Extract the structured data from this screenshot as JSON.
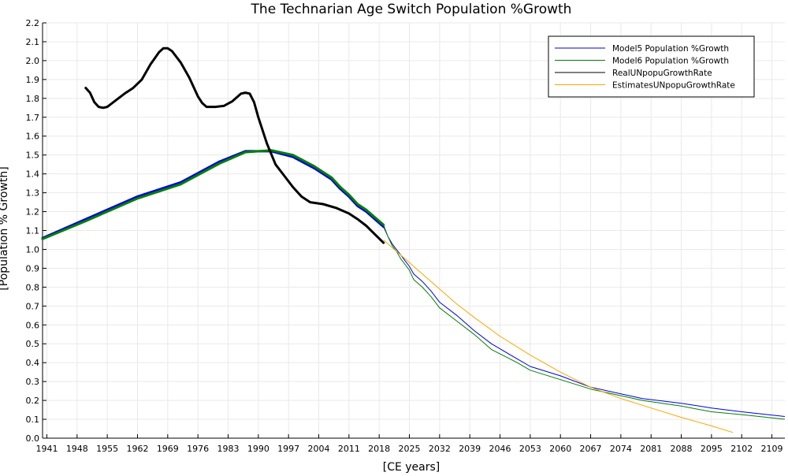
{
  "chart_data": {
    "type": "line",
    "title": "The Technarian Age Switch Population %Growth",
    "xlabel": "[CE years]",
    "ylabel": "[Population % Growth]",
    "xlim": [
      1940,
      2112
    ],
    "ylim": [
      0.0,
      2.2
    ],
    "grid": true,
    "legend_position": "top-right",
    "x_ticks": [
      1941,
      1948,
      1955,
      1962,
      1969,
      1976,
      1983,
      1990,
      1997,
      2004,
      2011,
      2018,
      2025,
      2032,
      2039,
      2046,
      2053,
      2060,
      2067,
      2074,
      2081,
      2088,
      2095,
      2102,
      2109
    ],
    "y_ticks": [
      "0.0",
      "0.1",
      "0.2",
      "0.3",
      "0.4",
      "0.5",
      "0.6",
      "0.7",
      "0.8",
      "0.9",
      "1.0",
      "1.1",
      "1.2",
      "1.3",
      "1.4",
      "1.5",
      "1.6",
      "1.7",
      "1.8",
      "1.9",
      "2.0",
      "2.1",
      "2.2"
    ],
    "series": [
      {
        "name": "Model5 Population %Growth",
        "color": "#0000e6",
        "x": [
          1940,
          1950,
          1962,
          1972,
          1981,
          1987,
          1993,
          1998,
          2003,
          2007,
          2009,
          2011,
          2013,
          2015,
          2017,
          2019,
          2020,
          2021,
          2022,
          2023,
          2024,
          2025,
          2026,
          2028,
          2030,
          2032,
          2036,
          2040,
          2044,
          2050,
          2053,
          2060,
          2067,
          2074,
          2079,
          2088,
          2095,
          2102,
          2112
        ],
        "y": [
          1.06,
          1.16,
          1.28,
          1.355,
          1.465,
          1.52,
          1.52,
          1.49,
          1.43,
          1.37,
          1.32,
          1.28,
          1.23,
          1.2,
          1.16,
          1.12,
          1.07,
          1.03,
          1.0,
          0.97,
          0.94,
          0.91,
          0.87,
          0.83,
          0.78,
          0.72,
          0.65,
          0.57,
          0.5,
          0.42,
          0.38,
          0.33,
          0.27,
          0.235,
          0.21,
          0.185,
          0.16,
          0.14,
          0.115
        ]
      },
      {
        "name": "Model6 Population %Growth",
        "color": "#008000",
        "x": [
          1940,
          1950,
          1962,
          1972,
          1981,
          1987,
          1993,
          1998,
          2003,
          2007,
          2009,
          2011,
          2013,
          2015,
          2017,
          2019,
          2020,
          2021,
          2022,
          2023,
          2024,
          2025,
          2026,
          2028,
          2030,
          2032,
          2036,
          2040,
          2044,
          2050,
          2053,
          2060,
          2067,
          2074,
          2079,
          2088,
          2095,
          2102,
          2112
        ],
        "y": [
          1.055,
          1.15,
          1.27,
          1.345,
          1.455,
          1.515,
          1.525,
          1.5,
          1.44,
          1.38,
          1.33,
          1.29,
          1.24,
          1.21,
          1.17,
          1.13,
          1.07,
          1.02,
          0.99,
          0.95,
          0.92,
          0.89,
          0.84,
          0.8,
          0.75,
          0.69,
          0.62,
          0.55,
          0.47,
          0.4,
          0.36,
          0.31,
          0.26,
          0.225,
          0.2,
          0.17,
          0.14,
          0.125,
          0.1
        ]
      },
      {
        "name": "RealUNpopuGrowthRate",
        "color": "#000000",
        "x": [
          1950,
          1951,
          1952,
          1953,
          1954,
          1955,
          1957,
          1959,
          1961,
          1963,
          1965,
          1967,
          1968,
          1969,
          1970,
          1972,
          1974,
          1976,
          1977,
          1978,
          1980,
          1982,
          1984,
          1986,
          1987,
          1988,
          1989,
          1990,
          1992,
          1994,
          1996,
          1998,
          2000,
          2002,
          2005,
          2008,
          2011,
          2013,
          2015,
          2017,
          2019
        ],
        "y": [
          1.855,
          1.83,
          1.78,
          1.755,
          1.75,
          1.755,
          1.79,
          1.825,
          1.855,
          1.9,
          1.98,
          2.045,
          2.065,
          2.065,
          2.05,
          1.99,
          1.91,
          1.81,
          1.775,
          1.755,
          1.755,
          1.76,
          1.785,
          1.825,
          1.83,
          1.825,
          1.78,
          1.7,
          1.56,
          1.45,
          1.39,
          1.33,
          1.28,
          1.25,
          1.24,
          1.22,
          1.19,
          1.16,
          1.125,
          1.08,
          1.035
        ]
      },
      {
        "name": "EstimatesUNpopuGrowthRate",
        "color": "#ffa500",
        "x": [
          2019,
          2021,
          2023,
          2025,
          2028,
          2032,
          2036,
          2040,
          2046,
          2053,
          2060,
          2067,
          2074,
          2081,
          2088,
          2095,
          2100
        ],
        "y": [
          1.05,
          1.01,
          0.97,
          0.93,
          0.87,
          0.79,
          0.71,
          0.64,
          0.54,
          0.44,
          0.35,
          0.27,
          0.21,
          0.16,
          0.11,
          0.065,
          0.03
        ]
      }
    ]
  }
}
